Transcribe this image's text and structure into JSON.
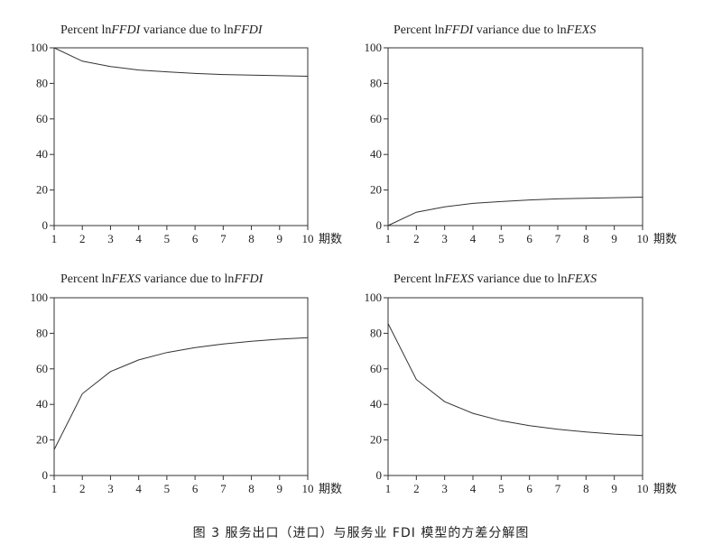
{
  "caption": "图 3 服务出口（进口）与服务业 FDI 模型的方差分解图",
  "chart_data": [
    {
      "type": "line",
      "title": "Percent lnFFDI variance due to lnFFDI",
      "title_parts": [
        {
          "text": "Percent ln",
          "italic": false
        },
        {
          "text": "FFDI",
          "italic": true
        },
        {
          "text": " variance due to ln",
          "italic": false
        },
        {
          "text": "FFDI",
          "italic": true
        }
      ],
      "xlabel": "期数",
      "x": [
        1,
        2,
        3,
        4,
        5,
        6,
        7,
        8,
        9,
        10
      ],
      "xlim": [
        1,
        10
      ],
      "ylim": [
        0,
        100
      ],
      "yticks": [
        0,
        20,
        40,
        60,
        80,
        100
      ],
      "values": [
        100,
        92.5,
        89.5,
        87.5,
        86.5,
        85.6,
        85,
        84.6,
        84.3,
        84
      ]
    },
    {
      "type": "line",
      "title": "Percent lnFFDI variance due to lnFEXS",
      "title_parts": [
        {
          "text": "Percent ln",
          "italic": false
        },
        {
          "text": "FFDI",
          "italic": true
        },
        {
          "text": " variance due to ln",
          "italic": false
        },
        {
          "text": "FEXS",
          "italic": true
        }
      ],
      "xlabel": "期数",
      "x": [
        1,
        2,
        3,
        4,
        5,
        6,
        7,
        8,
        9,
        10
      ],
      "xlim": [
        1,
        10
      ],
      "ylim": [
        0,
        100
      ],
      "yticks": [
        0,
        20,
        40,
        60,
        80,
        100
      ],
      "values": [
        0,
        7.5,
        10.5,
        12.5,
        13.5,
        14.4,
        15,
        15.4,
        15.7,
        16
      ]
    },
    {
      "type": "line",
      "title": "Percent lnFEXS variance due to lnFFDI",
      "title_parts": [
        {
          "text": "Percent ln",
          "italic": false
        },
        {
          "text": "FEXS",
          "italic": true
        },
        {
          "text": " variance due to ln",
          "italic": false
        },
        {
          "text": "FFDI",
          "italic": true
        }
      ],
      "xlabel": "期数",
      "x": [
        1,
        2,
        3,
        4,
        5,
        6,
        7,
        8,
        9,
        10
      ],
      "xlim": [
        1,
        10
      ],
      "ylim": [
        0,
        100
      ],
      "yticks": [
        0,
        20,
        40,
        60,
        80,
        100
      ],
      "values": [
        14.5,
        46,
        58.5,
        65,
        69.2,
        72,
        74,
        75.5,
        76.7,
        77.5
      ]
    },
    {
      "type": "line",
      "title": "Percent lnFEXS variance due to lnFEXS",
      "title_parts": [
        {
          "text": "Percent ln",
          "italic": false
        },
        {
          "text": "FEXS",
          "italic": true
        },
        {
          "text": " variance due to ln",
          "italic": false
        },
        {
          "text": "FEXS",
          "italic": true
        }
      ],
      "xlabel": "期数",
      "x": [
        1,
        2,
        3,
        4,
        5,
        6,
        7,
        8,
        9,
        10
      ],
      "xlim": [
        1,
        10
      ],
      "ylim": [
        0,
        100
      ],
      "yticks": [
        0,
        20,
        40,
        60,
        80,
        100
      ],
      "values": [
        85.5,
        54,
        41.5,
        35,
        30.8,
        28,
        26,
        24.5,
        23.3,
        22.5
      ]
    }
  ]
}
